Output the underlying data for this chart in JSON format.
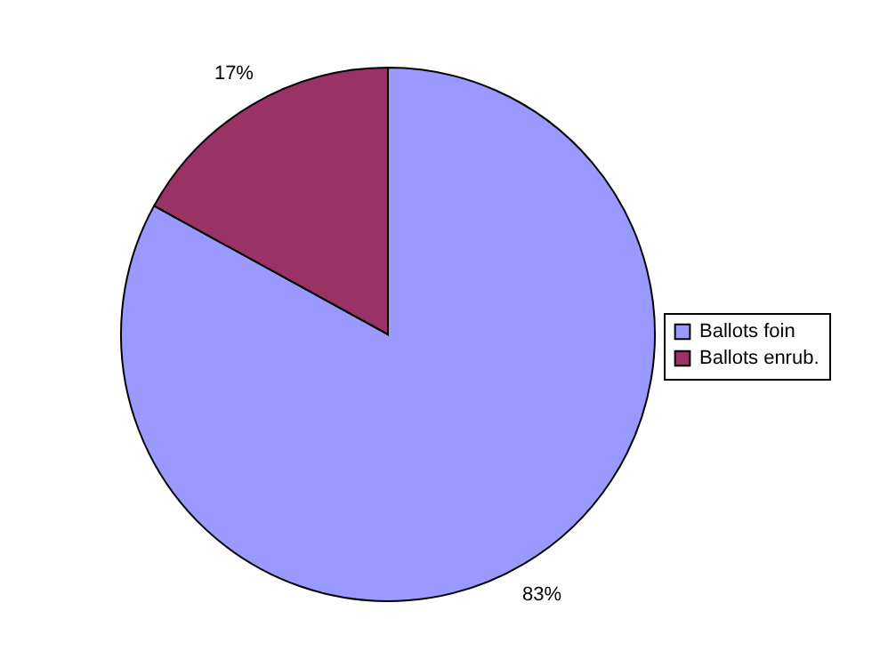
{
  "chart_data": {
    "type": "pie",
    "categories": [
      "Ballots foin",
      "Ballots enrub."
    ],
    "values": [
      83,
      17
    ],
    "colors": [
      "#9999ff",
      "#993366"
    ],
    "data_labels": true,
    "value_labels": [
      "83%",
      "17%"
    ],
    "legend": "right"
  }
}
